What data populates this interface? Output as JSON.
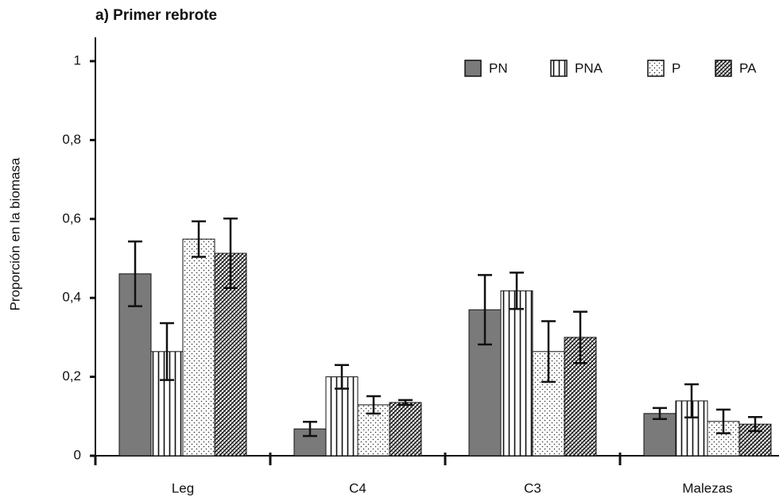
{
  "chart_data": {
    "type": "bar",
    "title": "a) Primer rebrote",
    "y_label": "Proporción en la biomasa",
    "categories": [
      "Leg",
      "C4",
      "C3",
      "Malezas"
    ],
    "series": [
      {
        "name": "PN",
        "color": "#7a7a7a",
        "pattern": "solid",
        "values": [
          0.461,
          0.068,
          0.37,
          0.107
        ],
        "errors": [
          0.082,
          0.018,
          0.088,
          0.014
        ]
      },
      {
        "name": "PNA",
        "color": "#111111",
        "pattern": "vertical",
        "values": [
          0.264,
          0.2,
          0.418,
          0.139
        ],
        "errors": [
          0.072,
          0.03,
          0.046,
          0.042
        ]
      },
      {
        "name": "P",
        "color": "#111111",
        "pattern": "dots",
        "values": [
          0.549,
          0.129,
          0.264,
          0.087
        ],
        "errors": [
          0.045,
          0.022,
          0.077,
          0.03
        ]
      },
      {
        "name": "PA",
        "color": "#111111",
        "pattern": "hatch",
        "values": [
          0.513,
          0.135,
          0.3,
          0.08
        ],
        "errors": [
          0.088,
          0.006,
          0.065,
          0.018
        ]
      }
    ],
    "ylim": [
      0,
      1
    ],
    "yticks": [
      0,
      {
        "value": 0.2,
        "label": "0,2"
      },
      {
        "value": 0.4,
        "label": "0,4"
      },
      {
        "value": 0.6,
        "label": "0,6"
      },
      {
        "value": 0.8,
        "label": "0,8"
      },
      1
    ],
    "legend": "top-right",
    "grid": false
  }
}
